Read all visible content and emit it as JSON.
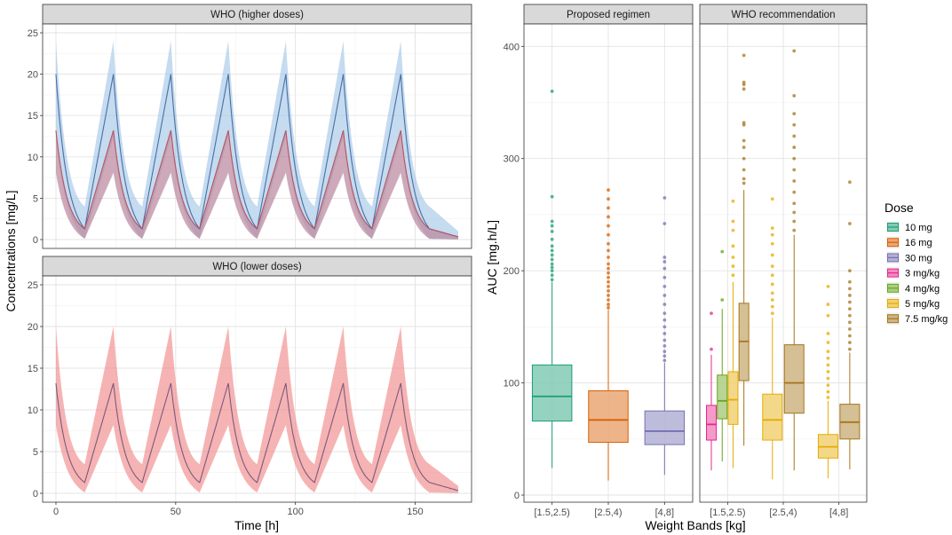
{
  "chart_data": [
    {
      "type": "line",
      "panel": "top-left",
      "title": "WHO (higher doses)",
      "xlabel": "Time [h]",
      "ylabel": "Concentrations [mg/L]",
      "xlim": [
        0,
        168
      ],
      "ylim": [
        0,
        25
      ],
      "x_ticks": [
        0,
        50,
        100,
        150
      ],
      "y_ticks": [
        0,
        5,
        10,
        15,
        20,
        25
      ],
      "dosing_interval_h": 24,
      "series": [
        {
          "name": "higher",
          "color": "#4A6FA5",
          "band_color": "#9DC3E6",
          "dose_times": [
            0,
            24,
            48,
            72,
            96,
            120,
            144
          ],
          "median_peak": 20,
          "median_trough": 1.3,
          "band_upper_peak": 24,
          "band_lower_trough": 0.1,
          "band_upper_trough": 4
        },
        {
          "name": "lower",
          "color": "#C44E52",
          "band_color": "#E69A9A",
          "dose_times": [
            0,
            24,
            48,
            72,
            96,
            120,
            144
          ],
          "median_peak": 13.2,
          "median_trough": 1.3,
          "band_upper_peak": 13.2,
          "band_lower_trough": 0.1,
          "band_upper_trough": 1.3
        }
      ]
    },
    {
      "type": "line",
      "panel": "bottom-left",
      "title": "WHO (lower doses)",
      "xlabel": "Time [h]",
      "ylabel": "Concentrations [mg/L]",
      "xlim": [
        0,
        168
      ],
      "ylim": [
        0,
        25
      ],
      "x_ticks": [
        0,
        50,
        100,
        150
      ],
      "y_ticks": [
        0,
        5,
        10,
        15,
        20,
        25
      ],
      "dosing_interval_h": 24,
      "series": [
        {
          "name": "lower",
          "color": "#7B5A7E",
          "band_color": "#F08080",
          "dose_times": [
            0,
            24,
            48,
            72,
            96,
            120,
            144
          ],
          "median_peak": 13.2,
          "median_trough": 1.3,
          "band_upper_peak": 20,
          "band_lower_trough": 0.1,
          "band_upper_trough": 3.5
        }
      ]
    },
    {
      "type": "box",
      "panel": "right",
      "xlabel": "Weight Bands [kg]",
      "ylabel": "AUC [mg.h/L]",
      "ylim": [
        0,
        400
      ],
      "y_ticks": [
        0,
        100,
        200,
        300,
        400
      ],
      "facets": [
        {
          "title": "Proposed regimen",
          "categories": [
            "[1.5,2.5)",
            "[2.5,4)",
            "[4,8]"
          ],
          "boxes": [
            {
              "category": "[1.5,2.5)",
              "dose": "10 mg",
              "min": 24,
              "q1": 66,
              "median": 88,
              "q3": 116,
              "max": 190,
              "outliers": [
                192,
                196,
                200,
                203,
                206,
                210,
                214,
                218,
                222,
                228,
                235,
                240,
                244,
                266,
                360
              ]
            },
            {
              "category": "[2.5,4)",
              "dose": "16 mg",
              "min": 13,
              "q1": 47,
              "median": 67,
              "q3": 93,
              "max": 165,
              "outliers": [
                167,
                170,
                174,
                178,
                182,
                186,
                190,
                194,
                198,
                202,
                206,
                212,
                218,
                224,
                232,
                240,
                248,
                256,
                264,
                272
              ]
            },
            {
              "category": "[4,8]",
              "dose": "30 mg",
              "min": 18,
              "q1": 45,
              "median": 57,
              "q3": 75,
              "max": 118,
              "outliers": [
                120,
                124,
                128,
                133,
                138,
                144,
                150,
                156,
                162,
                170,
                178,
                186,
                194,
                202,
                208,
                212,
                242,
                265
              ]
            }
          ]
        },
        {
          "title": "WHO recommendation",
          "categories": [
            "[1.5,2.5)",
            "[2.5,4)",
            "[4,8]"
          ],
          "boxes": [
            {
              "category": "[1.5,2.5)",
              "dose": "3 mg/kg",
              "min": 22,
              "q1": 49,
              "median": 63,
              "q3": 80,
              "max": 125,
              "outliers": [
                130,
                162
              ]
            },
            {
              "category": "[1.5,2.5)",
              "dose": "4 mg/kg",
              "min": 30,
              "q1": 68,
              "median": 84,
              "q3": 107,
              "max": 166,
              "outliers": [
                174,
                217
              ]
            },
            {
              "category": "[1.5,2.5)",
              "dose": "5 mg/kg",
              "min": 24,
              "q1": 63,
              "median": 85,
              "q3": 110,
              "max": 190,
              "outliers": [
                196,
                204,
                212,
                222,
                236,
                244,
                262
              ]
            },
            {
              "category": "[1.5,2.5)",
              "dose": "7.5 mg/kg",
              "min": 44,
              "q1": 102,
              "median": 137,
              "q3": 171,
              "max": 272,
              "outliers": [
                278,
                282,
                290,
                300,
                310,
                316,
                330,
                332,
                362,
                366,
                368,
                392
              ]
            },
            {
              "category": "[2.5,4)",
              "dose": "5 mg/kg",
              "min": 14,
              "q1": 49,
              "median": 67,
              "q3": 90,
              "max": 158,
              "outliers": [
                162,
                168,
                174,
                180,
                188,
                196,
                204,
                214,
                224,
                232,
                238,
                264
              ]
            },
            {
              "category": "[2.5,4)",
              "dose": "7.5 mg/kg",
              "min": 22,
              "q1": 73,
              "median": 100,
              "q3": 134,
              "max": 232,
              "outliers": [
                236,
                244,
                252,
                260,
                270,
                280,
                290,
                300,
                310,
                320,
                330,
                340,
                356,
                396
              ]
            },
            {
              "category": "[4,8]",
              "dose": "5 mg/kg",
              "min": 15,
              "q1": 33,
              "median": 43,
              "q3": 54,
              "max": 84,
              "outliers": [
                87,
                92,
                98,
                104,
                110,
                116,
                122,
                128,
                136,
                144,
                160,
                170,
                186
              ]
            },
            {
              "category": "[4,8]",
              "dose": "7.5 mg/kg",
              "min": 23,
              "q1": 50,
              "median": 65,
              "q3": 81,
              "max": 127,
              "outliers": [
                130,
                136,
                142,
                148,
                154,
                160,
                166,
                172,
                178,
                184,
                190,
                200,
                242,
                279
              ]
            }
          ]
        }
      ],
      "legend": {
        "title": "Dose",
        "position": "right",
        "items": [
          {
            "label": "10 mg",
            "color": "#1B9E77"
          },
          {
            "label": "16 mg",
            "color": "#D95F02"
          },
          {
            "label": "30 mg",
            "color": "#7570B3"
          },
          {
            "label": "3 mg/kg",
            "color": "#E7298A"
          },
          {
            "label": "4 mg/kg",
            "color": "#66A61E"
          },
          {
            "label": "5 mg/kg",
            "color": "#E6AB02"
          },
          {
            "label": "7.5 mg/kg",
            "color": "#A6761D"
          }
        ]
      }
    }
  ]
}
